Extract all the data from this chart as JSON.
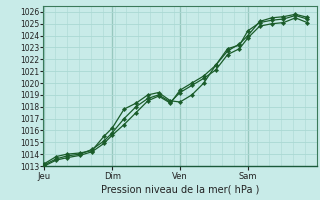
{
  "xlabel": "Pression niveau de la mer( hPa )",
  "bg_color": "#c8ebe8",
  "grid_color": "#aad8d3",
  "line_color": "#1a5c2a",
  "marker_color": "#1a5c2a",
  "ylim": [
    1013,
    1026.5
  ],
  "yticks": [
    1013,
    1014,
    1015,
    1016,
    1017,
    1018,
    1019,
    1020,
    1021,
    1022,
    1023,
    1024,
    1025,
    1026
  ],
  "day_labels": [
    "Jeu",
    "Dim",
    "Ven",
    "Sam"
  ],
  "day_positions": [
    0.05,
    2.9,
    5.75,
    8.6
  ],
  "series1_x": [
    0.05,
    0.55,
    1.0,
    1.55,
    2.05,
    2.55,
    2.9,
    3.4,
    3.9,
    4.4,
    4.85,
    5.35,
    5.75,
    6.25,
    6.75,
    7.25,
    7.75,
    8.25,
    8.6,
    9.1,
    9.6,
    10.1,
    10.6,
    11.1
  ],
  "series1_y": [
    1013.2,
    1013.8,
    1014.0,
    1014.1,
    1014.3,
    1015.5,
    1016.2,
    1017.8,
    1018.3,
    1019.0,
    1019.2,
    1018.5,
    1018.4,
    1019.0,
    1020.0,
    1021.5,
    1022.9,
    1023.2,
    1024.4,
    1025.1,
    1025.3,
    1025.4,
    1025.7,
    1025.4
  ],
  "series2_x": [
    0.05,
    0.55,
    1.0,
    1.55,
    2.05,
    2.55,
    2.9,
    3.4,
    3.9,
    4.4,
    4.85,
    5.35,
    5.75,
    6.25,
    6.75,
    7.25,
    7.75,
    8.25,
    8.6,
    9.1,
    9.6,
    10.1,
    10.6,
    11.1
  ],
  "series2_y": [
    1013.1,
    1013.6,
    1013.85,
    1014.0,
    1014.4,
    1015.1,
    1015.8,
    1017.0,
    1018.0,
    1018.7,
    1019.0,
    1018.4,
    1019.2,
    1019.8,
    1020.4,
    1021.1,
    1022.4,
    1022.9,
    1023.8,
    1024.8,
    1025.0,
    1025.1,
    1025.5,
    1025.1
  ],
  "series3_x": [
    0.05,
    0.55,
    1.0,
    1.55,
    2.05,
    2.55,
    2.9,
    3.4,
    3.9,
    4.4,
    4.85,
    5.35,
    5.75,
    6.25,
    6.75,
    7.25,
    7.75,
    8.25,
    8.6,
    9.1,
    9.6,
    10.1,
    10.6,
    11.1
  ],
  "series3_y": [
    1013.0,
    1013.5,
    1013.7,
    1013.9,
    1014.2,
    1014.9,
    1015.6,
    1016.5,
    1017.5,
    1018.5,
    1018.9,
    1018.3,
    1019.4,
    1020.0,
    1020.6,
    1021.5,
    1022.7,
    1023.3,
    1024.0,
    1025.2,
    1025.5,
    1025.6,
    1025.8,
    1025.55
  ],
  "xlim": [
    0,
    11.5
  ]
}
